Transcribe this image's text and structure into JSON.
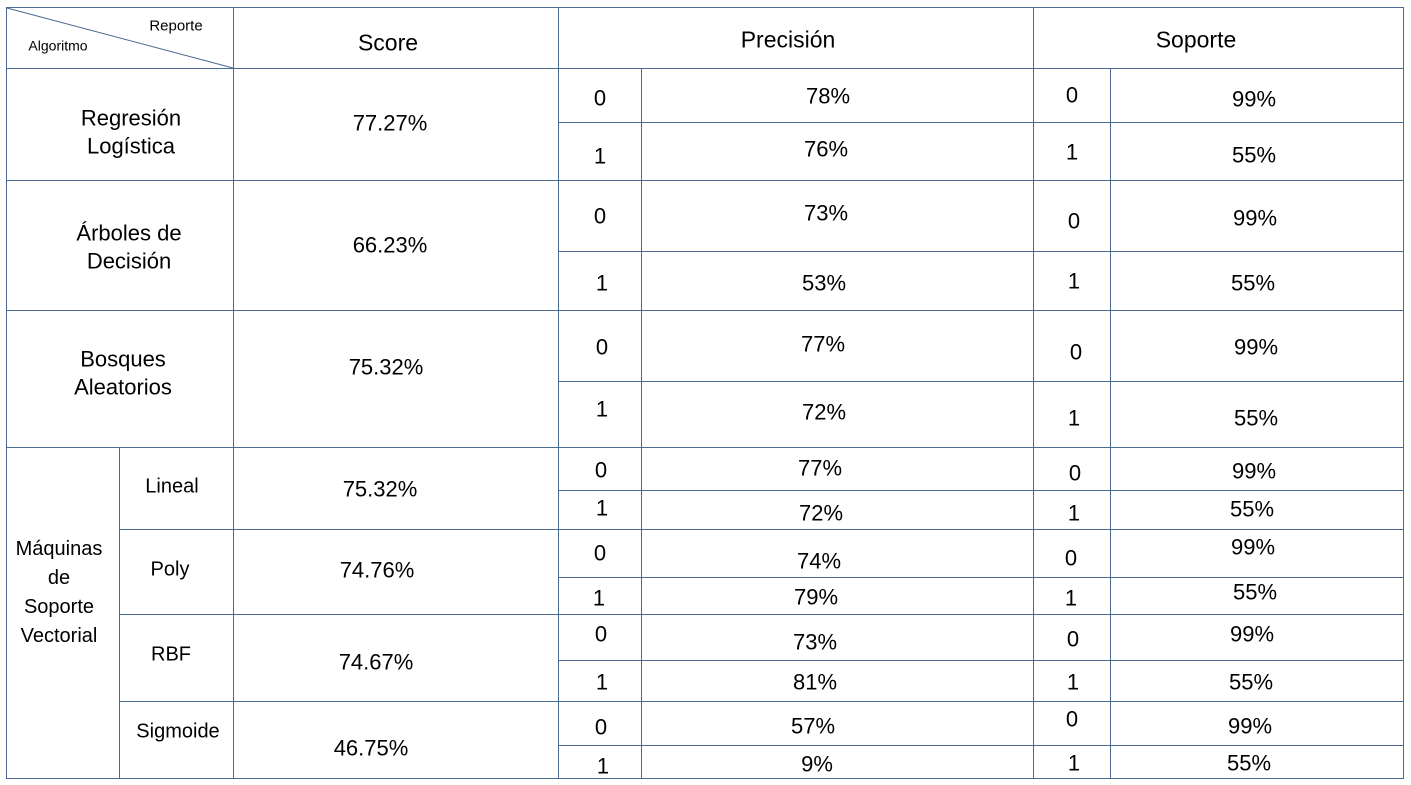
{
  "header": {
    "corner_top": "Reporte",
    "corner_bottom": "Algoritmo",
    "score": "Score",
    "precision": "Precisión",
    "soporte": "Soporte"
  },
  "rows": [
    {
      "name": [
        "Regresión",
        "Logística"
      ],
      "score": "77.27%",
      "precision": [
        {
          "cls": "0",
          "val": "78%"
        },
        {
          "cls": "1",
          "val": "76%"
        }
      ],
      "soporte": [
        {
          "cls": "0",
          "val": "99%"
        },
        {
          "cls": "1",
          "val": "55%"
        }
      ]
    },
    {
      "name": [
        "Árboles de",
        "Decisión"
      ],
      "score": "66.23%",
      "precision": [
        {
          "cls": "0",
          "val": "73%"
        },
        {
          "cls": "1",
          "val": "53%"
        }
      ],
      "soporte": [
        {
          "cls": "0",
          "val": "99%"
        },
        {
          "cls": "1",
          "val": "55%"
        }
      ]
    },
    {
      "name": [
        "Bosques",
        "Aleatorios"
      ],
      "score": "75.32%",
      "precision": [
        {
          "cls": "0",
          "val": "77%"
        },
        {
          "cls": "1",
          "val": "72%"
        }
      ],
      "soporte": [
        {
          "cls": "0",
          "val": "99%"
        },
        {
          "cls": "1",
          "val": "55%"
        }
      ]
    }
  ],
  "svm": {
    "group": [
      "Máquinas",
      "de",
      "Soporte",
      "Vectorial"
    ],
    "kernels": [
      {
        "name": "Lineal",
        "score": "75.32%",
        "precision": [
          {
            "cls": "0",
            "val": "77%"
          },
          {
            "cls": "1",
            "val": "72%"
          }
        ],
        "soporte": [
          {
            "cls": "0",
            "val": "99%"
          },
          {
            "cls": "1",
            "val": "55%"
          }
        ]
      },
      {
        "name": "Poly",
        "score": "74.76%",
        "precision": [
          {
            "cls": "0",
            "val": "74%"
          },
          {
            "cls": "1",
            "val": "79%"
          }
        ],
        "soporte": [
          {
            "cls": "0",
            "val": "99%"
          },
          {
            "cls": "1",
            "val": "55%"
          }
        ]
      },
      {
        "name": "RBF",
        "score": "74.67%",
        "precision": [
          {
            "cls": "0",
            "val": "73%"
          },
          {
            "cls": "1",
            "val": "81%"
          }
        ],
        "soporte": [
          {
            "cls": "0",
            "val": "99%"
          },
          {
            "cls": "1",
            "val": "55%"
          }
        ]
      },
      {
        "name": "Sigmoide",
        "score": "46.75%",
        "precision": [
          {
            "cls": "0",
            "val": "57%"
          },
          {
            "cls": "1",
            "val": "9%"
          }
        ],
        "soporte": [
          {
            "cls": "0",
            "val": "99%"
          },
          {
            "cls": "1",
            "val": "55%"
          }
        ]
      }
    ]
  }
}
